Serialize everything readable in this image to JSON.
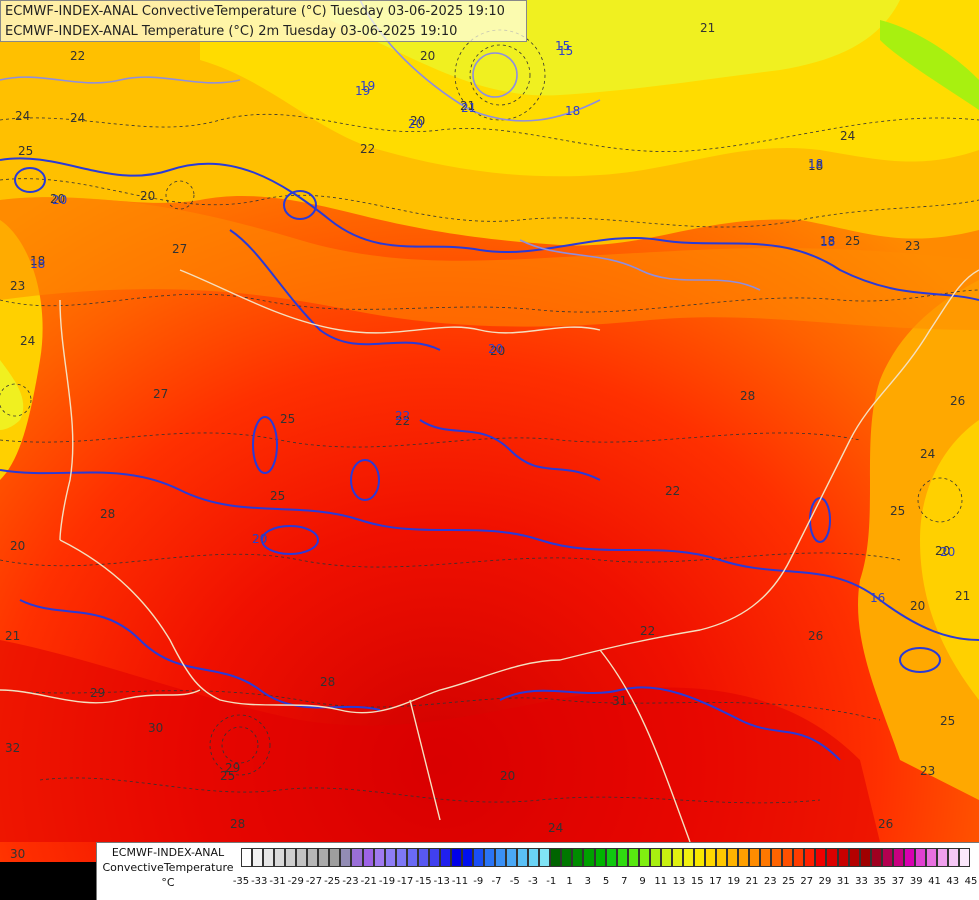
{
  "title_lines": [
    "ECMWF-INDEX-ANAL ConvectiveTemperature (°C) Tuesday 03-06-2025 19:10",
    "ECMWF-INDEX-ANAL Temperature (°C) 2m Tuesday 03-06-2025 19:10"
  ],
  "legend": {
    "title_lines": [
      "ECMWF-INDEX-ANAL",
      "ConvectiveTemperature",
      "°C"
    ],
    "tick_labels": [
      "-35",
      "-33",
      "-31",
      "-29",
      "-27",
      "-25",
      "-23",
      "-21",
      "-19",
      "-17",
      "-15",
      "-13",
      "-11",
      "-9",
      "-7",
      "-5",
      "-3",
      "-1",
      "1",
      "3",
      "5",
      "7",
      "9",
      "11",
      "13",
      "15",
      "17",
      "19",
      "21",
      "23",
      "25",
      "27",
      "29",
      "31",
      "33",
      "35",
      "37",
      "39",
      "41",
      "43",
      "45"
    ],
    "colors": [
      "#ffffff",
      "#f2f2f2",
      "#e6e6e6",
      "#dadada",
      "#cecece",
      "#c2c2c2",
      "#b6b6b6",
      "#aaaaaa",
      "#9e9e9e",
      "#928cb4",
      "#9a6fd8",
      "#9d63e6",
      "#a07af0",
      "#8e7df5",
      "#7e78f5",
      "#6a6af5",
      "#5858f2",
      "#4040f0",
      "#2020ee",
      "#0000e8",
      "#0010f0",
      "#1a4ef5",
      "#2a74f5",
      "#3a90f5",
      "#4aa8f5",
      "#5ac0f5",
      "#6ad4f5",
      "#80e4f5",
      "#006400",
      "#007800",
      "#008c00",
      "#00a000",
      "#00b400",
      "#10c810",
      "#30dc10",
      "#58e810",
      "#80f010",
      "#a8f010",
      "#c8f010",
      "#e0f010",
      "#f0f010",
      "#f8e800",
      "#ffd800",
      "#ffc800",
      "#ffb400",
      "#ffa000",
      "#ff8c00",
      "#ff7800",
      "#ff6400",
      "#ff5000",
      "#ff3c00",
      "#ff2000",
      "#f00000",
      "#dc0000",
      "#c80000",
      "#b40000",
      "#a00000",
      "#a00020",
      "#b40050",
      "#c80080",
      "#d800b0",
      "#e040d0",
      "#e870e0",
      "#f0a0ee",
      "#f6c8f6",
      "#fce8fc"
    ],
    "values_range": [
      -35,
      45
    ]
  },
  "contour_labels": {
    "convective": [
      "22",
      "24",
      "25",
      "20",
      "18",
      "23",
      "24",
      "27",
      "27",
      "25",
      "20",
      "28",
      "20",
      "21",
      "29",
      "30",
      "32",
      "30",
      "28",
      "25",
      "20",
      "23",
      "20",
      "21",
      "18",
      "18",
      "24",
      "25",
      "28",
      "22",
      "22",
      "22",
      "24",
      "26",
      "31",
      "24",
      "25",
      "23",
      "26",
      "25",
      "29",
      "20",
      "22",
      "20",
      "20",
      "24",
      "21",
      "25",
      "20",
      "20",
      "21",
      "26",
      "28"
    ],
    "temperature_2m": [
      "22",
      "20",
      "15",
      "18",
      "19",
      "20",
      "20",
      "21",
      "18",
      "20",
      "18",
      "18",
      "15",
      "20",
      "19",
      "16"
    ]
  }
}
